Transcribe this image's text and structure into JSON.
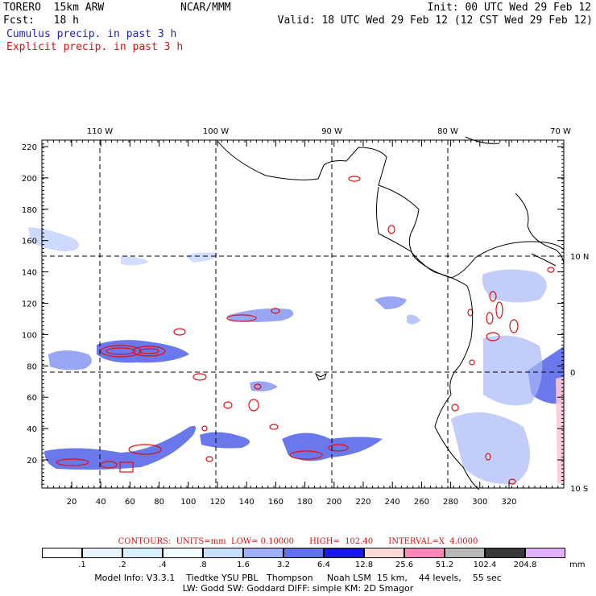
{
  "header": {
    "model": "TORERO  15km ARW",
    "center": "NCAR/MMM",
    "init": "Init: 00 UTC Wed 29 Feb 12",
    "fcst": "Fcst:   18 h",
    "valid": "Valid: 18 UTC Wed 29 Feb 12 (12 CST Wed 29 Feb 12)",
    "field1": "Cumulus precip. in past 3 h",
    "field2": "Explicit precip. in past 3 h"
  },
  "axes": {
    "top_lon": [
      "110 W",
      "100 W",
      "90 W",
      "80 W",
      "70 W"
    ],
    "right_lat": [
      "10 N",
      "0",
      "10 S"
    ],
    "y_ticks": [
      "220",
      "200",
      "180",
      "160",
      "140",
      "120",
      "100",
      "80",
      "60",
      "40",
      "20"
    ],
    "x_ticks": [
      "20",
      "40",
      "60",
      "80",
      "100",
      "120",
      "140",
      "160",
      "180",
      "200",
      "220",
      "240",
      "260",
      "280",
      "300",
      "320"
    ]
  },
  "contours": {
    "text": "CONTOURS:  UNITS=mm  LOW= 0.10000      HIGH=  102.40      INTERVAL=X  4.0000"
  },
  "colorbar": {
    "labels": [
      ".1",
      ".2",
      ".4",
      ".8",
      "1.6",
      "3.2",
      "6.4",
      "12.8",
      "25.6",
      "51.2",
      "102.4",
      "204.8"
    ],
    "unit": "mm",
    "colors": [
      "#ffffff",
      "#e8f4ff",
      "#d8f0ff",
      "#f0ffff",
      "#c8e0ff",
      "#a0b0f8",
      "#6070f0",
      "#1818e8",
      "#ffd8d8",
      "#ff88b8",
      "#b8b8b8",
      "#383838",
      "#e0b0ff"
    ]
  },
  "footer": {
    "line1": "Model Info: V3.3.1    Tiedtke YSU PBL   Thompson     Noah LSM  15 km,    44 levels,    55 sec",
    "line2": "LW: Godd SW: Goddard DIFF: simple KM: 2D Smagor"
  },
  "legend_colors": {
    "cumulus": "#2020c0",
    "explicit": "#e01010"
  }
}
